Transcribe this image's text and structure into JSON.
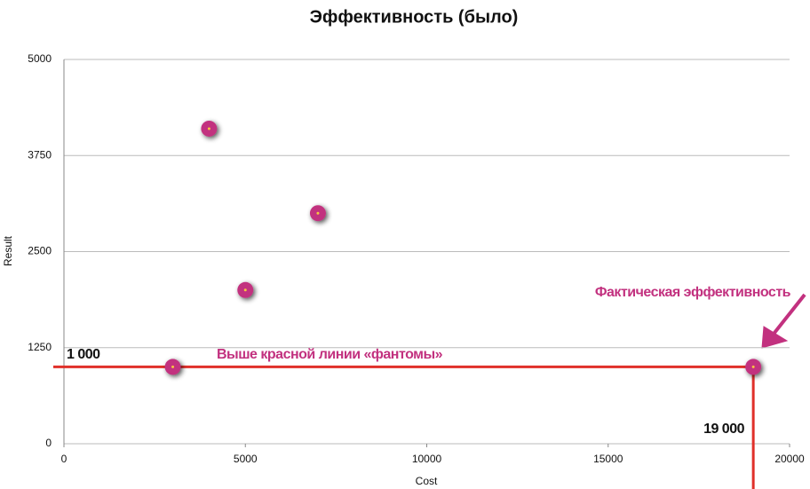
{
  "chart_data": {
    "type": "scatter",
    "title": "Эффективность (было)",
    "x_label": "Cost",
    "y_label": "Result",
    "x": [
      3000,
      4000,
      5000,
      7000,
      19000
    ],
    "series": [
      {
        "color": "#c2317f",
        "values": [
          1000,
          4100,
          2000,
          3000,
          1000
        ]
      }
    ],
    "xlim": [
      0,
      20000
    ],
    "xticks": [
      0,
      5000,
      10000,
      15000,
      20000
    ],
    "ylim": [
      0,
      5000
    ],
    "yticks": [
      0,
      1250,
      2500,
      3750,
      5000
    ],
    "grid": true,
    "line_color": "#e0302a",
    "annotation_color": "#c2317f",
    "annotations": [
      "1 000",
      "19 000",
      "Выше красной линии «фантомы»",
      "Фактическая эффективность"
    ]
  }
}
